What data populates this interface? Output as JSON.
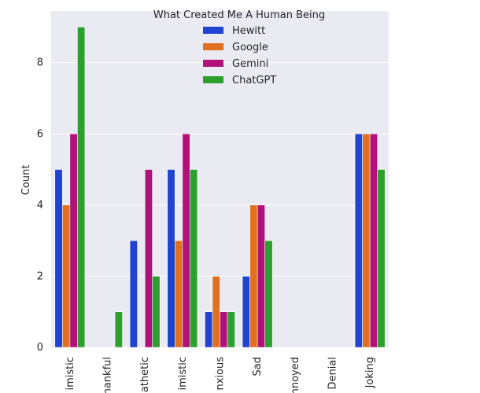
{
  "chart_data": {
    "type": "bar",
    "xlabel": "",
    "ylabel": "Count",
    "ylim": [
      0,
      9.45
    ],
    "yticks": [
      0,
      2,
      4,
      6,
      8
    ],
    "grid": true,
    "categories": [
      "Optimistic",
      "Thankful",
      "Empathetic",
      "Pessimistic",
      "Anxious",
      "Sad",
      "Annoyed",
      "Denial",
      "Joking"
    ],
    "category_labels": [
      "imistic",
      "hankful",
      "athetic",
      "imistic",
      "nxious",
      "Sad",
      "nnoyed",
      "Denial",
      "Joking"
    ],
    "legend": {
      "title": "What Created Me A Human Being",
      "placement": "top-center"
    },
    "series": [
      {
        "name": "Hewitt",
        "color": "#1f44d0",
        "values": [
          5,
          0,
          3,
          5,
          1,
          2,
          0,
          0,
          6
        ]
      },
      {
        "name": "Google",
        "color": "#e07020",
        "values": [
          4,
          0,
          0,
          3,
          2,
          4,
          0,
          0,
          6
        ]
      },
      {
        "name": "Gemini",
        "color": "#b0127a",
        "values": [
          6,
          0,
          5,
          6,
          1,
          4,
          0,
          0,
          6
        ]
      },
      {
        "name": "ChatGPT",
        "color": "#2ca02c",
        "values": [
          9,
          1,
          2,
          5,
          1,
          3,
          0,
          0,
          5
        ]
      }
    ]
  },
  "colors": {
    "plot_bg": "#eaeaf2",
    "grid": "#ffffff",
    "text": "#262626"
  }
}
